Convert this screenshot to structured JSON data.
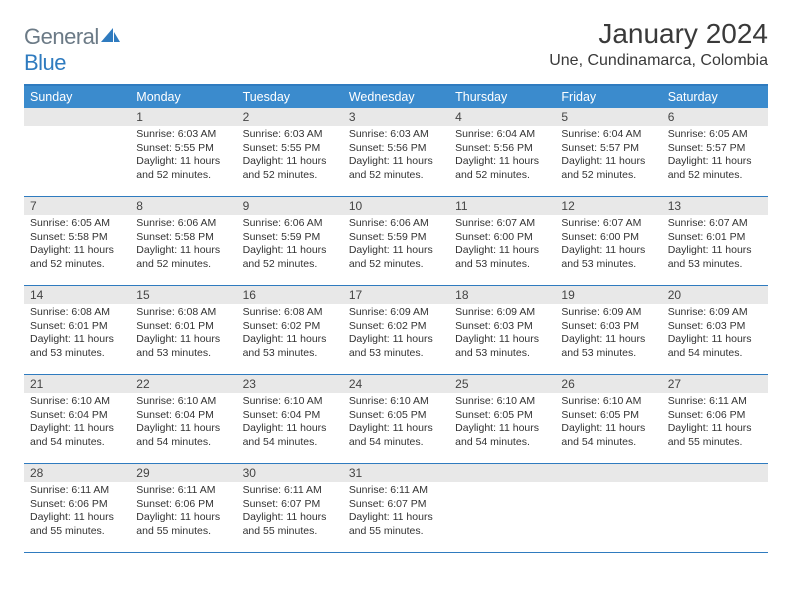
{
  "logo": {
    "part1": "General",
    "part2": "Blue"
  },
  "title": "January 2024",
  "location": "Une, Cundinamarca, Colombia",
  "dow": [
    "Sunday",
    "Monday",
    "Tuesday",
    "Wednesday",
    "Thursday",
    "Friday",
    "Saturday"
  ],
  "colors": {
    "brand_blue": "#3b8bcd",
    "rule_blue": "#2f7bbf",
    "gray_bg": "#e8e8e8",
    "text": "#333333",
    "logo_gray": "#6b7a86"
  },
  "typography": {
    "title_fontsize": 28,
    "location_fontsize": 16,
    "dow_fontsize": 12.5,
    "daynum_fontsize": 12,
    "body_fontsize": 10.5
  },
  "layout": {
    "columns": 7,
    "rows": 5,
    "start_day_index": 1,
    "days_in_month": 31
  },
  "days": {
    "1": {
      "sunrise": "6:03 AM",
      "sunset": "5:55 PM",
      "daylight": "11 hours and 52 minutes."
    },
    "2": {
      "sunrise": "6:03 AM",
      "sunset": "5:55 PM",
      "daylight": "11 hours and 52 minutes."
    },
    "3": {
      "sunrise": "6:03 AM",
      "sunset": "5:56 PM",
      "daylight": "11 hours and 52 minutes."
    },
    "4": {
      "sunrise": "6:04 AM",
      "sunset": "5:56 PM",
      "daylight": "11 hours and 52 minutes."
    },
    "5": {
      "sunrise": "6:04 AM",
      "sunset": "5:57 PM",
      "daylight": "11 hours and 52 minutes."
    },
    "6": {
      "sunrise": "6:05 AM",
      "sunset": "5:57 PM",
      "daylight": "11 hours and 52 minutes."
    },
    "7": {
      "sunrise": "6:05 AM",
      "sunset": "5:58 PM",
      "daylight": "11 hours and 52 minutes."
    },
    "8": {
      "sunrise": "6:06 AM",
      "sunset": "5:58 PM",
      "daylight": "11 hours and 52 minutes."
    },
    "9": {
      "sunrise": "6:06 AM",
      "sunset": "5:59 PM",
      "daylight": "11 hours and 52 minutes."
    },
    "10": {
      "sunrise": "6:06 AM",
      "sunset": "5:59 PM",
      "daylight": "11 hours and 52 minutes."
    },
    "11": {
      "sunrise": "6:07 AM",
      "sunset": "6:00 PM",
      "daylight": "11 hours and 53 minutes."
    },
    "12": {
      "sunrise": "6:07 AM",
      "sunset": "6:00 PM",
      "daylight": "11 hours and 53 minutes."
    },
    "13": {
      "sunrise": "6:07 AM",
      "sunset": "6:01 PM",
      "daylight": "11 hours and 53 minutes."
    },
    "14": {
      "sunrise": "6:08 AM",
      "sunset": "6:01 PM",
      "daylight": "11 hours and 53 minutes."
    },
    "15": {
      "sunrise": "6:08 AM",
      "sunset": "6:01 PM",
      "daylight": "11 hours and 53 minutes."
    },
    "16": {
      "sunrise": "6:08 AM",
      "sunset": "6:02 PM",
      "daylight": "11 hours and 53 minutes."
    },
    "17": {
      "sunrise": "6:09 AM",
      "sunset": "6:02 PM",
      "daylight": "11 hours and 53 minutes."
    },
    "18": {
      "sunrise": "6:09 AM",
      "sunset": "6:03 PM",
      "daylight": "11 hours and 53 minutes."
    },
    "19": {
      "sunrise": "6:09 AM",
      "sunset": "6:03 PM",
      "daylight": "11 hours and 53 minutes."
    },
    "20": {
      "sunrise": "6:09 AM",
      "sunset": "6:03 PM",
      "daylight": "11 hours and 54 minutes."
    },
    "21": {
      "sunrise": "6:10 AM",
      "sunset": "6:04 PM",
      "daylight": "11 hours and 54 minutes."
    },
    "22": {
      "sunrise": "6:10 AM",
      "sunset": "6:04 PM",
      "daylight": "11 hours and 54 minutes."
    },
    "23": {
      "sunrise": "6:10 AM",
      "sunset": "6:04 PM",
      "daylight": "11 hours and 54 minutes."
    },
    "24": {
      "sunrise": "6:10 AM",
      "sunset": "6:05 PM",
      "daylight": "11 hours and 54 minutes."
    },
    "25": {
      "sunrise": "6:10 AM",
      "sunset": "6:05 PM",
      "daylight": "11 hours and 54 minutes."
    },
    "26": {
      "sunrise": "6:10 AM",
      "sunset": "6:05 PM",
      "daylight": "11 hours and 54 minutes."
    },
    "27": {
      "sunrise": "6:11 AM",
      "sunset": "6:06 PM",
      "daylight": "11 hours and 55 minutes."
    },
    "28": {
      "sunrise": "6:11 AM",
      "sunset": "6:06 PM",
      "daylight": "11 hours and 55 minutes."
    },
    "29": {
      "sunrise": "6:11 AM",
      "sunset": "6:06 PM",
      "daylight": "11 hours and 55 minutes."
    },
    "30": {
      "sunrise": "6:11 AM",
      "sunset": "6:07 PM",
      "daylight": "11 hours and 55 minutes."
    },
    "31": {
      "sunrise": "6:11 AM",
      "sunset": "6:07 PM",
      "daylight": "11 hours and 55 minutes."
    }
  },
  "labels": {
    "sunrise_prefix": "Sunrise: ",
    "sunset_prefix": "Sunset: ",
    "daylight_prefix": "Daylight: "
  }
}
